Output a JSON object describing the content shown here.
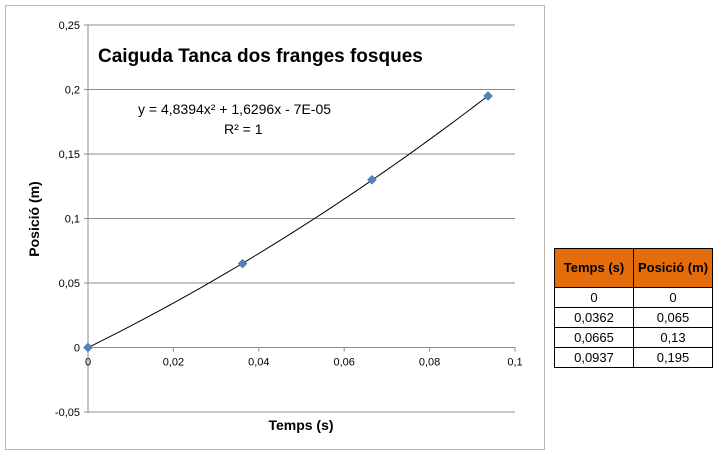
{
  "chart_data": {
    "type": "scatter",
    "title": "Caiguda Tanca dos franges fosques",
    "xlabel": "Temps (s)",
    "ylabel": "Posició (m)",
    "xlim": [
      0,
      0.1
    ],
    "ylim": [
      -0.05,
      0.25
    ],
    "x_ticks": [
      "0",
      "0,02",
      "0,04",
      "0,06",
      "0,08",
      "0,1"
    ],
    "y_ticks": [
      "-0,05",
      "0",
      "0,05",
      "0,1",
      "0,15",
      "0,2",
      "0,25"
    ],
    "points": [
      {
        "x": 0,
        "y": 0
      },
      {
        "x": 0.0362,
        "y": 0.065
      },
      {
        "x": 0.0665,
        "y": 0.13
      },
      {
        "x": 0.0937,
        "y": 0.195
      }
    ],
    "trendline": {
      "type": "polynomial",
      "coefficients": [
        4.8394,
        1.6296,
        -7e-05
      ]
    },
    "equation_text": "y = 4,8394x² + 1,6296x - 7E-05",
    "r2_text": "R² = 1",
    "grid": true,
    "marker_color": "#4f81bd",
    "line_color": "#000000"
  },
  "table": {
    "headers": [
      "Temps (s)",
      "Posició (m)"
    ],
    "rows": [
      [
        "0",
        "0"
      ],
      [
        "0,0362",
        "0,065"
      ],
      [
        "0,0665",
        "0,13"
      ],
      [
        "0,0937",
        "0,195"
      ]
    ],
    "header_color": "#e46c0a"
  }
}
